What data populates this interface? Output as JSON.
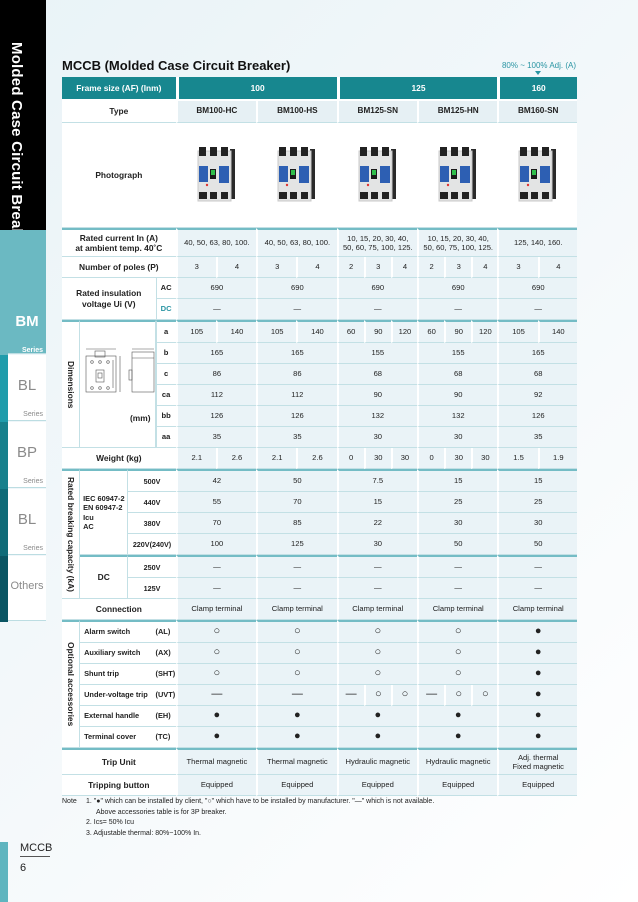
{
  "sidebar": {
    "title": "Molded Case Circuit Breaker",
    "tabs": [
      {
        "name": "BM",
        "sub": "Series",
        "active": true,
        "color": "#6bb9c2"
      },
      {
        "name": "BL",
        "sub": "Series",
        "color": "#1f9cab"
      },
      {
        "name": "BP",
        "sub": "Series",
        "color": "#17808c"
      },
      {
        "name": "BL",
        "sub": "Series",
        "color": "#0f6b78"
      },
      {
        "name": "Others",
        "color": "#0a5563"
      }
    ]
  },
  "page": {
    "title": "MCCB (Molded Case Circuit Breaker)",
    "adj_note": "80% ~ 100% Adj. (A)",
    "footer_section": "MCCB",
    "page_number": "6",
    "accent_color": "#17878f"
  },
  "table": {
    "frame": {
      "label": "Frame size (AF) (Inm)",
      "values": [
        "100",
        "125",
        "160"
      ]
    },
    "type": {
      "label": "Type",
      "values": [
        "BM100-HC",
        "BM100-HS",
        "BM125-SN",
        "BM125-HN",
        "BM160-SN"
      ]
    },
    "photo": {
      "label": "Photograph"
    },
    "rated_current": {
      "label": "Rated current In (A)\nat ambient temp. 40˚C",
      "values": [
        "40, 50, 63, 80, 100.",
        "40, 50, 63, 80, 100.",
        "10, 15, 20, 30, 40,\n50, 60, 75, 100, 125.",
        "10, 15, 20, 30, 40,\n50, 60, 75, 100, 125.",
        "125, 140, 160."
      ]
    },
    "poles": {
      "label": "Number of poles (P)",
      "values": [
        [
          "3",
          "4"
        ],
        [
          "3",
          "4"
        ],
        [
          "2",
          "3",
          "4"
        ],
        [
          "2",
          "3",
          "4"
        ],
        [
          "3",
          "4"
        ]
      ]
    },
    "insulation": {
      "label": "Rated insulation\nvoltage Ui (V)",
      "rows": [
        {
          "sub": "AC",
          "values": [
            "690",
            "690",
            "690",
            "690",
            "690"
          ]
        },
        {
          "sub": "DC",
          "values": [
            "—",
            "—",
            "—",
            "—",
            "—"
          ]
        }
      ]
    },
    "dimensions": {
      "label": "Dimensions",
      "unit": "(mm)",
      "rows": [
        {
          "sub": "a",
          "values": [
            [
              "105",
              "140"
            ],
            [
              "105",
              "140"
            ],
            [
              "60",
              "90",
              "120"
            ],
            [
              "60",
              "90",
              "120"
            ],
            [
              "105",
              "140"
            ]
          ]
        },
        {
          "sub": "b",
          "values": [
            "165",
            "165",
            "155",
            "155",
            "165"
          ]
        },
        {
          "sub": "c",
          "values": [
            "86",
            "86",
            "68",
            "68",
            "68"
          ]
        },
        {
          "sub": "ca",
          "values": [
            "112",
            "112",
            "90",
            "90",
            "92"
          ]
        },
        {
          "sub": "bb",
          "values": [
            "126",
            "126",
            "132",
            "132",
            "126"
          ]
        },
        {
          "sub": "aa",
          "values": [
            "35",
            "35",
            "30",
            "30",
            "35"
          ]
        }
      ]
    },
    "weight": {
      "label": "Weight (kg)",
      "values": [
        [
          "2.1",
          "2.6"
        ],
        [
          "2.1",
          "2.6"
        ],
        [
          "0",
          "30",
          "30"
        ],
        [
          "0",
          "30",
          "30"
        ],
        [
          "1.5",
          "1.9"
        ]
      ]
    },
    "breaking": {
      "label": "Rated breaking capacity (kA)",
      "ac_label": "IEC 60947-2\nEN 60947-2\nIcu\n          AC",
      "dc_label": "DC",
      "rows": [
        {
          "sub": "500V",
          "values": [
            "42",
            "50",
            "7.5",
            "15",
            "15"
          ]
        },
        {
          "sub": "440V",
          "values": [
            "55",
            "70",
            "15",
            "25",
            "25"
          ]
        },
        {
          "sub": "380V",
          "values": [
            "70",
            "85",
            "22",
            "30",
            "30"
          ]
        },
        {
          "sub": "220V(240V)",
          "values": [
            "100",
            "125",
            "30",
            "50",
            "50"
          ]
        },
        {
          "sub": "250V",
          "values": [
            "—",
            "—",
            "—",
            "—",
            "—"
          ]
        },
        {
          "sub": "125V",
          "values": [
            "—",
            "—",
            "—",
            "—",
            "—"
          ]
        }
      ]
    },
    "connection": {
      "label": "Connection",
      "values": [
        "Clamp terminal",
        "Clamp terminal",
        "Clamp terminal",
        "Clamp terminal",
        "Clamp terminal"
      ]
    },
    "accessories": {
      "label": "Optional accessories",
      "rows": [
        {
          "name": "Alarm switch",
          "code": "(AL)",
          "values": [
            "○",
            "○",
            "○",
            "○",
            "●"
          ]
        },
        {
          "name": "Auxiliary switch",
          "code": "(AX)",
          "values": [
            "○",
            "○",
            "○",
            "○",
            "●"
          ]
        },
        {
          "name": "Shunt trip",
          "code": "(SHT)",
          "values": [
            "○",
            "○",
            "○",
            "○",
            "●"
          ]
        },
        {
          "name": "Under-voltage trip",
          "code": "(UVT)",
          "values": [
            "—",
            "—",
            [
              "—",
              "○",
              "○"
            ],
            [
              "—",
              "○",
              "○"
            ],
            "●"
          ]
        },
        {
          "name": "External handle",
          "code": "(EH)",
          "values": [
            "●",
            "●",
            "●",
            "●",
            "●"
          ]
        },
        {
          "name": "Terminal cover",
          "code": "(TC)",
          "values": [
            "●",
            "●",
            "●",
            "●",
            "●"
          ]
        }
      ]
    },
    "trip_unit": {
      "label": "Trip Unit",
      "values": [
        "Thermal magnetic",
        "Thermal magnetic",
        "Hydraulic magnetic",
        "Hydraulic magnetic",
        "Adj. thermal\nFixed magnetic"
      ]
    },
    "tripping_button": {
      "label": "Tripping button",
      "values": [
        "Equipped",
        "Equipped",
        "Equipped",
        "Equipped",
        "Equipped"
      ]
    }
  },
  "notes": {
    "label": "Note",
    "lines": [
      "1. \"●\" which can be installed by client,  \"○\" which have to be installed by manufacturer. \"—\" which is not available.",
      "Above accessories table is for 3P breaker.",
      "2. Ics= 50% Icu",
      "3. Adjustable thermal: 80%~100% In."
    ]
  }
}
